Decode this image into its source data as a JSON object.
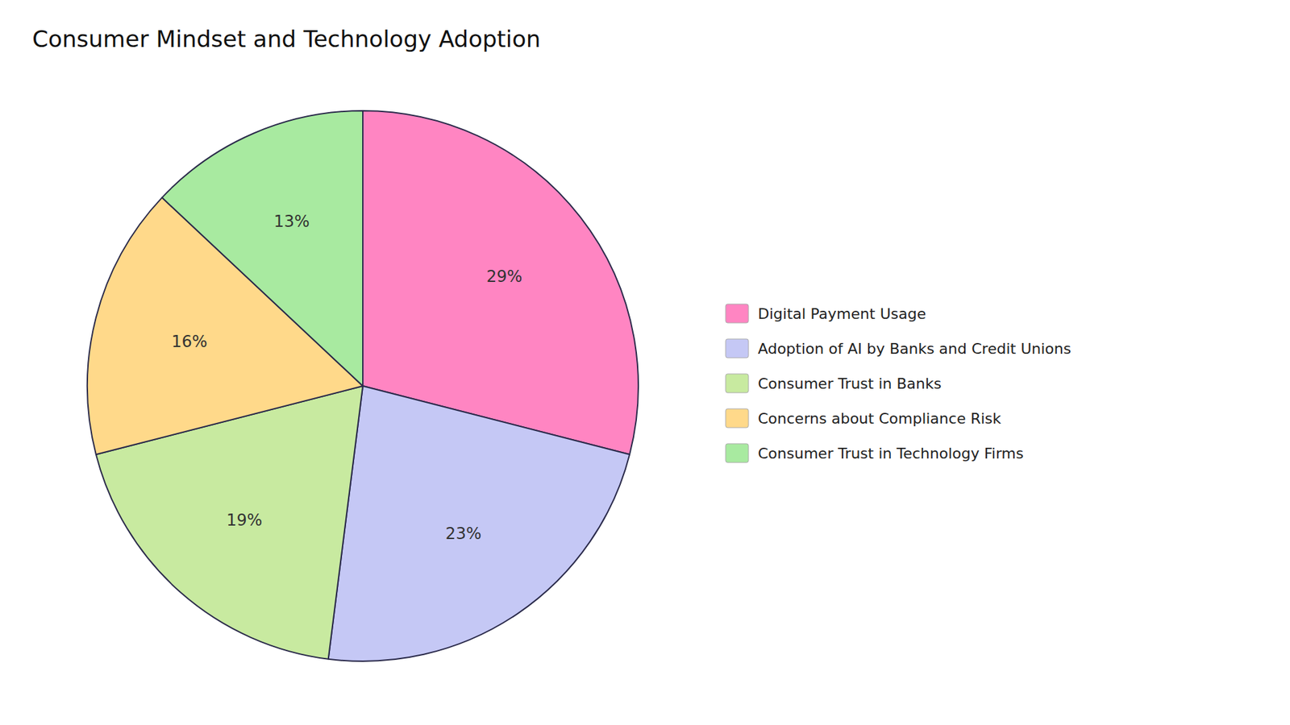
{
  "chart_data": {
    "type": "pie",
    "title": "Consumer Mindset and Technology Adoption",
    "categories": [
      "Digital Payment Usage",
      "Adoption of AI by Banks and Credit Unions",
      "Consumer Trust in Banks",
      "Concerns about Compliance Risk",
      "Consumer Trust in Technology Firms"
    ],
    "values": [
      29,
      23,
      19,
      16,
      13
    ],
    "value_labels": [
      "29%",
      "23%",
      "19%",
      "16%",
      "13%"
    ],
    "colors": [
      "#FF85C2",
      "#C5C8F5",
      "#C8EAA0",
      "#FFD98A",
      "#A8EAA0"
    ],
    "data_labels": true,
    "legend": "right"
  }
}
